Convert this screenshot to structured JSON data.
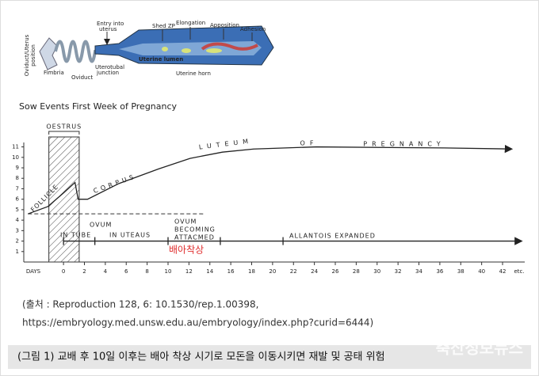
{
  "diagram": {
    "labels": [
      "Oviduct/Uterus",
      "position",
      "Fimbria",
      "Oviduct",
      "Entry into",
      "uterus",
      "Uterotubal",
      "junction",
      "Shed ZP",
      "Elongation",
      "Apposition",
      "Adhesion",
      "Uterine lumen",
      "Uterine horn"
    ]
  },
  "chart_data": {
    "type": "line",
    "title": "Sow Events First Week of Pregnancy",
    "x": [
      -3.4,
      -1.5,
      0,
      1.1,
      1.4,
      2.3,
      5.3,
      9.1,
      12.1,
      15.2,
      18.2,
      24.2,
      36.4,
      42.8
    ],
    "series": [
      {
        "name": "FOLLICLE / CORPUS LUTEUM OF PREGNANCY",
        "color": "#222222",
        "values": [
          4.6,
          5.3,
          6.6,
          7.6,
          6.0,
          6.0,
          7.5,
          8.9,
          9.9,
          10.5,
          10.8,
          11,
          10.9,
          10.8
        ]
      }
    ],
    "xlim": [
      -3.8,
      44.5
    ],
    "ylim": [
      0,
      11.8
    ],
    "xticks": [
      0,
      2,
      4,
      6,
      8,
      10,
      12,
      14,
      16,
      18,
      20,
      22,
      24,
      26,
      28,
      30,
      32,
      34,
      36,
      38,
      40,
      42
    ],
    "yticks": [
      1,
      2,
      3,
      4,
      5,
      6,
      7,
      8,
      9,
      10,
      11
    ],
    "xlabel": "DAYS",
    "x_end_label": "etc.",
    "oestrus": {
      "label": "OESTRUS",
      "start": -1.4,
      "end": 1.5
    },
    "dashed_line": {
      "y": 4.6,
      "start": -3.4,
      "end": 13.5
    },
    "timeline": {
      "y": 2,
      "marks": [
        0,
        3,
        10,
        15,
        21
      ]
    },
    "annotations": [
      "FOLLICLE",
      "CORPUS",
      "LUTEUM",
      "OF",
      "PREGNANCY",
      "IN TUBE",
      "OVUM",
      "IN UTEAUS",
      "OVUM",
      "BECOMING",
      "ATTACMED",
      "ALLANTOIS EXPANDED",
      "배아착상"
    ]
  },
  "source": [
    "(출처 : Reproduction 128, 6: 10.1530/rep.1.00398,",
    "https://embryology.med.unsw.edu.au/embryology/index.php?curid=6444)"
  ],
  "caption": "(그림 1) 교배 후 10일 이후는 배아 착상 시기로 모돈을 이동시키면 재발 및 공태 위험",
  "watermark": "축산정보뉴스"
}
